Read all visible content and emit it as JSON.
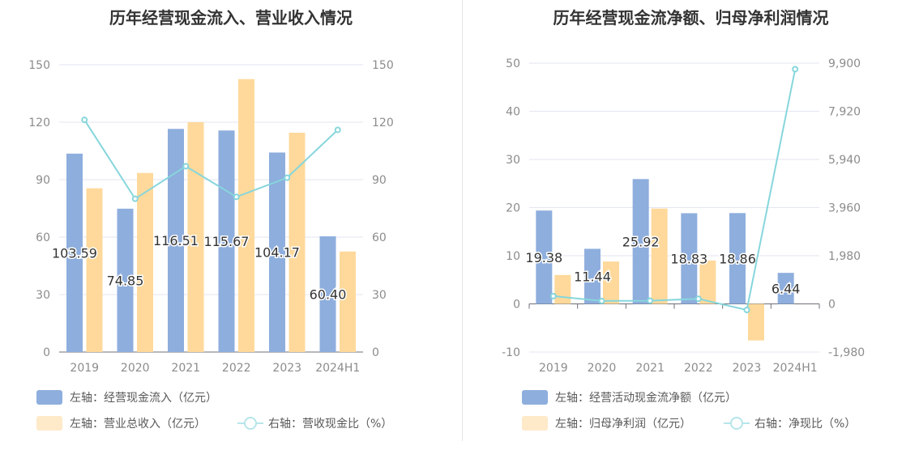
{
  "colors": {
    "bar1": "#8eaedd",
    "bar2": "#fed99b",
    "line": "#86d6dc",
    "axis_text": "#8c8c8c",
    "grid": "#e3e6f2",
    "label": "#333333"
  },
  "chart_data": [
    {
      "type": "bar",
      "title": "历年经营现金流入、营业收入情况",
      "categories": [
        "2019",
        "2020",
        "2021",
        "2022",
        "2023",
        "2024H1"
      ],
      "left_axis": {
        "ticks": [
          "0",
          "30",
          "60",
          "90",
          "120",
          "150"
        ],
        "ylim": [
          0,
          150
        ]
      },
      "right_axis": {
        "ticks": [
          "0",
          "30",
          "60",
          "90",
          "120",
          "150"
        ],
        "ylim": [
          0,
          150
        ]
      },
      "series": [
        {
          "name": "左轴：经营现金流入（亿元）",
          "axis": "left",
          "kind": "bar",
          "values": [
            103.59,
            74.85,
            116.51,
            115.67,
            104.17,
            60.4
          ],
          "labels": [
            "103.59",
            "74.85",
            "116.51",
            "115.67",
            "104.17",
            "60.40"
          ]
        },
        {
          "name": "左轴：营业总收入（亿元）",
          "axis": "left",
          "kind": "bar",
          "values": [
            85.5,
            93.5,
            120.0,
            142.5,
            114.5,
            52.5
          ]
        },
        {
          "name": "右轴：营收现金比（%）",
          "axis": "right",
          "kind": "line",
          "values": [
            121.2,
            80.0,
            97.0,
            81.0,
            91.0,
            116.0
          ]
        }
      ]
    },
    {
      "type": "bar",
      "title": "历年经营现金流净额、归母净利润情况",
      "categories": [
        "2019",
        "2020",
        "2021",
        "2022",
        "2023",
        "2024H1"
      ],
      "left_axis": {
        "ticks": [
          "-10",
          "0",
          "10",
          "20",
          "30",
          "40",
          "50"
        ],
        "ylim": [
          -10,
          50
        ]
      },
      "right_axis": {
        "ticks": [
          "-1,980",
          "0",
          "1,980",
          "3,960",
          "5,940",
          "7,920",
          "9,900"
        ],
        "ylim": [
          -1980,
          9900
        ]
      },
      "series": [
        {
          "name": "左轴：经营活动现金流净额（亿元）",
          "axis": "left",
          "kind": "bar",
          "values": [
            19.38,
            11.44,
            25.92,
            18.83,
            18.86,
            6.44
          ],
          "labels": [
            "19.38",
            "11.44",
            "25.92",
            "18.83",
            "18.86",
            "6.44"
          ]
        },
        {
          "name": "左轴：归母净利润（亿元）",
          "axis": "left",
          "kind": "bar",
          "values": [
            6.0,
            8.8,
            19.8,
            9.0,
            -7.6,
            null
          ]
        },
        {
          "name": "右轴：净现比（%）",
          "axis": "right",
          "kind": "line",
          "values": [
            320,
            120,
            130,
            210,
            -250,
            9650
          ]
        }
      ]
    }
  ]
}
